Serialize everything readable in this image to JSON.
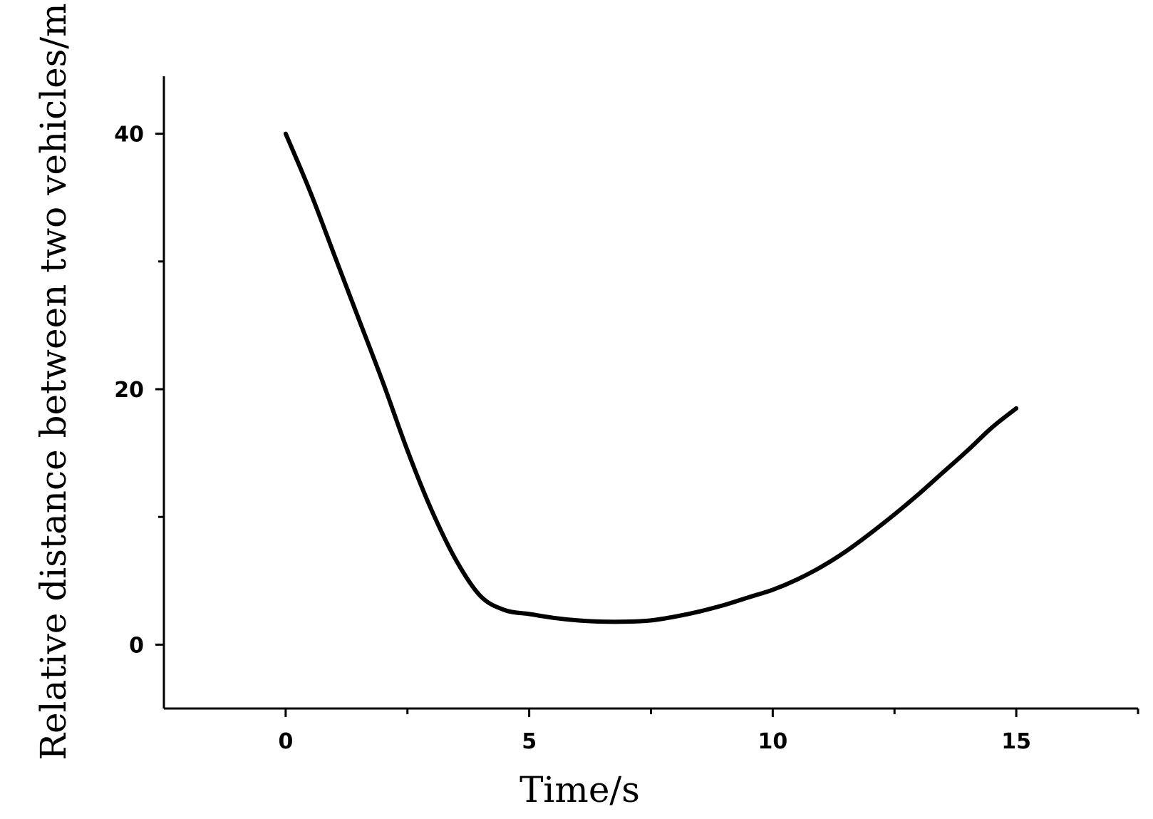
{
  "chart_data": {
    "type": "line",
    "title": "",
    "xlabel": "Time/s",
    "ylabel": "Relative distance between two vehicles/m",
    "xlim": [
      -2.5,
      17.5
    ],
    "ylim": [
      -5,
      44.5
    ],
    "xticks_major": [
      0,
      5,
      10,
      15
    ],
    "xticks_minor": [
      2.5,
      7.5,
      12.5,
      17.5
    ],
    "yticks_major": [
      0,
      20,
      40
    ],
    "yticks_minor": [
      10,
      30
    ],
    "grid": false,
    "series": [
      {
        "x": [
          0,
          0.5,
          1,
          1.5,
          2,
          2.5,
          3,
          3.5,
          4,
          4.5,
          5,
          5.5,
          6,
          6.5,
          7,
          7.5,
          8,
          8.5,
          9,
          9.5,
          10,
          10.5,
          11,
          11.5,
          12,
          12.5,
          13,
          13.5,
          14,
          14.5,
          15
        ],
        "y": [
          40,
          35.5,
          30.5,
          25.5,
          20.5,
          15.2,
          10.5,
          6.6,
          3.8,
          2.7,
          2.4,
          2.1,
          1.9,
          1.8,
          1.8,
          1.9,
          2.2,
          2.6,
          3.1,
          3.7,
          4.3,
          5.1,
          6.1,
          7.3,
          8.7,
          10.2,
          11.8,
          13.5,
          15.2,
          17.0,
          18.5
        ]
      }
    ]
  }
}
